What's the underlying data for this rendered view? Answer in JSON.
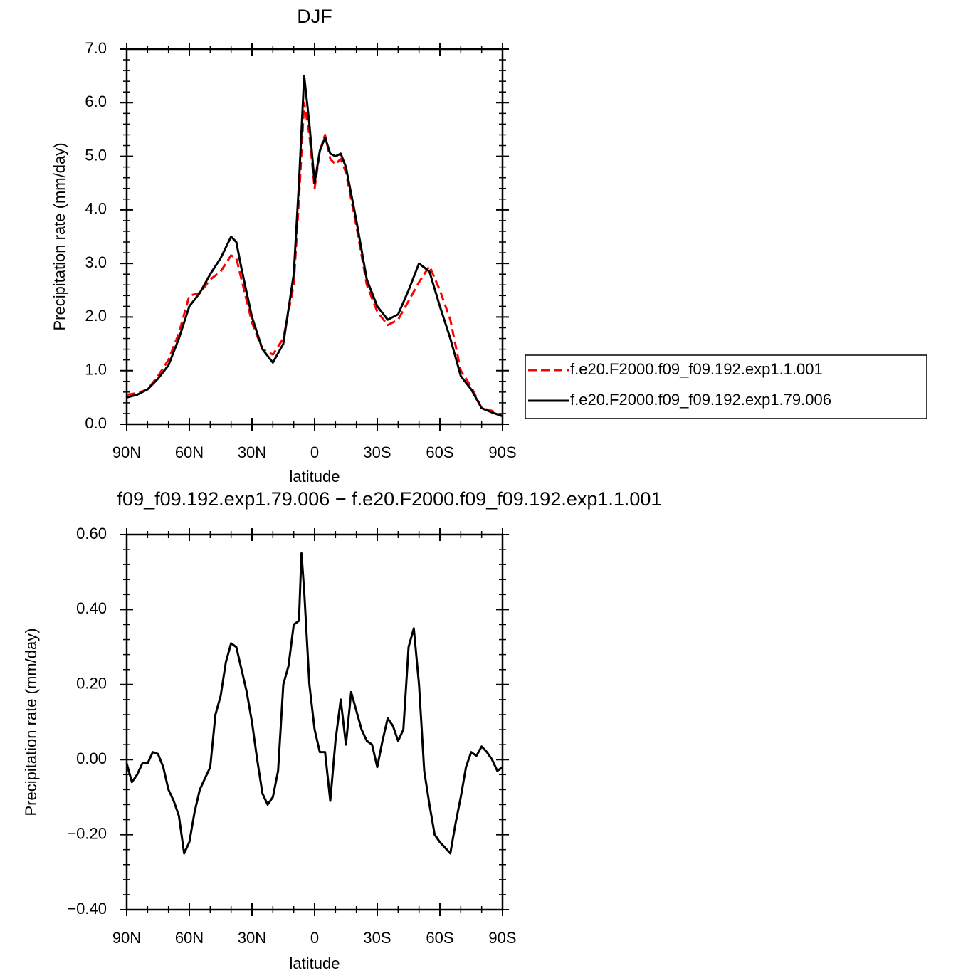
{
  "chart_data": [
    {
      "type": "line",
      "title": "DJF",
      "xlabel": "latitude",
      "ylabel": "Precipitation rate (mm/day)",
      "x": [
        90,
        85,
        80,
        75,
        70,
        65,
        60,
        55,
        50,
        45,
        40,
        37.5,
        35,
        30,
        25,
        20,
        15,
        10,
        7.5,
        5,
        2.5,
        0,
        -2.5,
        -5,
        -7.5,
        -10,
        -12.5,
        -15,
        -20,
        -25,
        -30,
        -35,
        -40,
        -45,
        -50,
        -55,
        -60,
        -65,
        -70,
        -75,
        -80,
        -85,
        -90
      ],
      "series": [
        {
          "name": "f.e20.F2000.f09_f09.192.exp1.1.001",
          "color": "#ff0000",
          "style": "dashed",
          "values": [
            0.55,
            0.58,
            0.65,
            0.9,
            1.2,
            1.7,
            2.4,
            2.45,
            2.7,
            2.85,
            3.15,
            3.1,
            2.7,
            1.9,
            1.4,
            1.3,
            1.6,
            2.6,
            4.2,
            6.0,
            5.4,
            4.4,
            5.1,
            5.4,
            4.95,
            4.85,
            4.95,
            4.7,
            3.7,
            2.6,
            2.1,
            1.85,
            1.95,
            2.3,
            2.65,
            2.95,
            2.5,
            1.95,
            1.0,
            0.7,
            0.3,
            0.25,
            0.15
          ]
        },
        {
          "name": "f.e20.F2000.f09_f09.192.exp1.79.006",
          "color": "#000000",
          "style": "solid",
          "values": [
            0.5,
            0.55,
            0.65,
            0.85,
            1.1,
            1.6,
            2.2,
            2.45,
            2.8,
            3.1,
            3.5,
            3.4,
            2.9,
            2.0,
            1.4,
            1.15,
            1.5,
            2.8,
            4.5,
            6.5,
            5.6,
            4.5,
            5.1,
            5.35,
            5.05,
            5.0,
            5.05,
            4.8,
            3.8,
            2.7,
            2.2,
            1.95,
            2.05,
            2.5,
            3.0,
            2.85,
            2.2,
            1.6,
            0.9,
            0.65,
            0.3,
            0.22,
            0.15
          ]
        }
      ],
      "xlim": [
        90,
        -90
      ],
      "xticks": [
        {
          "value": 90,
          "label": "90N"
        },
        {
          "value": 60,
          "label": "60N"
        },
        {
          "value": 30,
          "label": "30N"
        },
        0,
        {
          "value": -30,
          "label": "30S"
        },
        {
          "value": -60,
          "label": "60S"
        },
        {
          "value": -90,
          "label": "90S"
        }
      ],
      "ylim": [
        0,
        7
      ],
      "yticks": [
        {
          "value": 0,
          "label": "0.0"
        },
        {
          "value": 1,
          "label": "1.0"
        },
        {
          "value": 2,
          "label": "2.0"
        },
        {
          "value": 3,
          "label": "3.0"
        },
        {
          "value": 4,
          "label": "4.0"
        },
        {
          "value": 5,
          "label": "5.0"
        },
        {
          "value": 6,
          "label": "6.0"
        },
        {
          "value": 7,
          "label": "7.0"
        }
      ],
      "legend": "right"
    },
    {
      "type": "line",
      "title": "f09_f09.192.exp1.79.006 − f.e20.F2000.f09_f09.192.exp1.1.001",
      "xlabel": "latitude",
      "ylabel": "Precipitation rate (mm/day)",
      "x": [
        90,
        87.5,
        85,
        82.5,
        80,
        77.5,
        75,
        72.5,
        70,
        67.5,
        65,
        62.5,
        60,
        57.5,
        55,
        52.5,
        50,
        47.5,
        45,
        42.5,
        40,
        37.5,
        35,
        32.5,
        30,
        27.5,
        25,
        22.5,
        20,
        17.5,
        15,
        12.5,
        10,
        7.5,
        6.3,
        5,
        2.5,
        0,
        -2.5,
        -5,
        -7.5,
        -10,
        -12.5,
        -15,
        -17.5,
        -20,
        -22.5,
        -25,
        -27.5,
        -30,
        -32.5,
        -35,
        -37.5,
        -40,
        -42.5,
        -45,
        -47.5,
        -50,
        -52.5,
        -55,
        -57.5,
        -60,
        -62.5,
        -65,
        -67.5,
        -70,
        -72.5,
        -75,
        -77.5,
        -80,
        -82.5,
        -85,
        -87.5,
        -90
      ],
      "color": "#000000",
      "values": [
        -0.01,
        -0.06,
        -0.04,
        -0.01,
        -0.01,
        0.02,
        0.015,
        -0.02,
        -0.08,
        -0.11,
        -0.15,
        -0.25,
        -0.22,
        -0.14,
        -0.08,
        -0.05,
        -0.02,
        0.12,
        0.17,
        0.26,
        0.31,
        0.3,
        0.24,
        0.18,
        0.1,
        0.0,
        -0.09,
        -0.12,
        -0.1,
        -0.03,
        0.2,
        0.25,
        0.36,
        0.37,
        0.55,
        0.45,
        0.2,
        0.08,
        0.02,
        0.02,
        -0.11,
        0.05,
        0.16,
        0.04,
        0.18,
        0.13,
        0.08,
        0.05,
        0.04,
        -0.02,
        0.05,
        0.11,
        0.09,
        0.05,
        0.08,
        0.3,
        0.35,
        0.2,
        -0.03,
        -0.12,
        -0.2,
        -0.22,
        -0.235,
        -0.25,
        -0.17,
        -0.1,
        -0.02,
        0.02,
        0.01,
        0.035,
        0.02,
        0.0,
        -0.03,
        -0.02
      ],
      "xlim": [
        90,
        -90
      ],
      "xticks": [
        {
          "value": 90,
          "label": "90N"
        },
        {
          "value": 60,
          "label": "60N"
        },
        {
          "value": 30,
          "label": "30N"
        },
        0,
        {
          "value": -30,
          "label": "30S"
        },
        {
          "value": -60,
          "label": "60S"
        },
        {
          "value": -90,
          "label": "90S"
        }
      ],
      "ylim": [
        -0.4,
        0.6
      ],
      "yticks": [
        {
          "value": -0.4,
          "label": "−0.40"
        },
        {
          "value": -0.2,
          "label": "−0.20"
        },
        {
          "value": 0,
          "label": "0.00"
        },
        {
          "value": 0.2,
          "label": "0.20"
        },
        {
          "value": 0.4,
          "label": "0.40"
        },
        {
          "value": 0.6,
          "label": "0.60"
        }
      ]
    }
  ]
}
